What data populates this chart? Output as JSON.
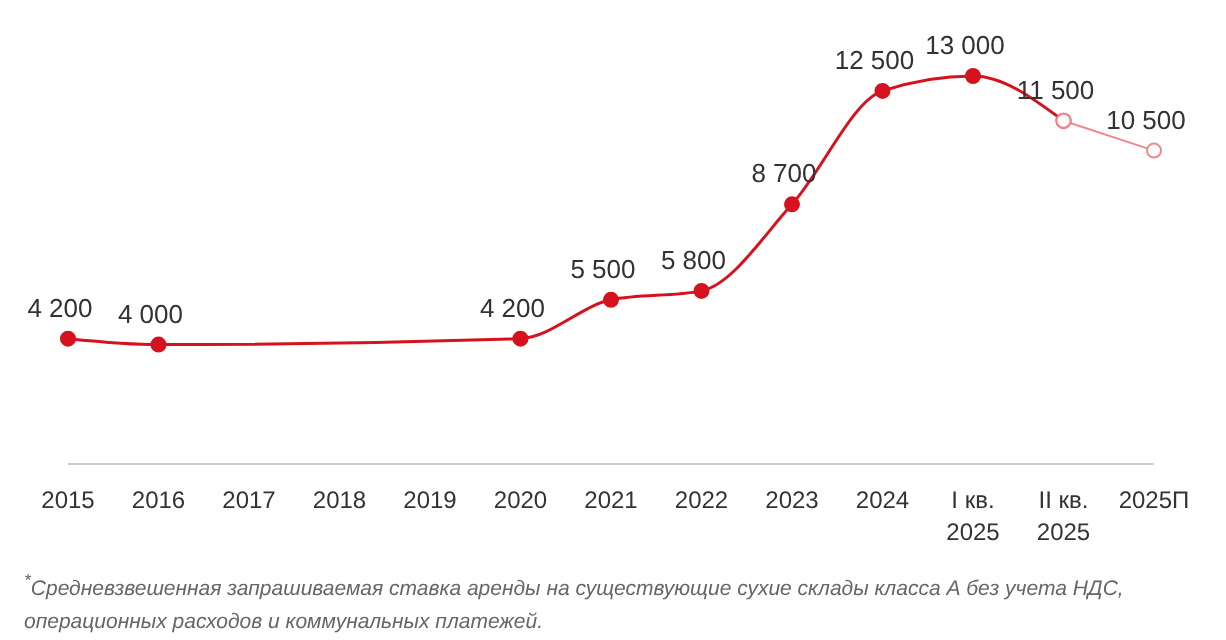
{
  "chart_data": {
    "type": "line",
    "categories": [
      "2015",
      "2016",
      "2017",
      "2018",
      "2019",
      "2020",
      "2021",
      "2022",
      "2023",
      "2024",
      "I кв. 2025",
      "II кв. 2025",
      "2025П"
    ],
    "series": [
      {
        "color": "#d5121d",
        "values": [
          4200,
          4000,
          null,
          null,
          null,
          4200,
          5500,
          5800,
          8700,
          12500,
          13000,
          11500,
          null
        ],
        "value_labels": [
          "4 200",
          "4 000",
          null,
          null,
          null,
          "4 200",
          "5 500",
          "5 800",
          "8 700",
          "12 500",
          "13 000",
          "11 500",
          null
        ]
      },
      {
        "color": "#ee8a8f",
        "values": [
          null,
          null,
          null,
          null,
          null,
          null,
          null,
          null,
          null,
          null,
          null,
          11500,
          10500
        ],
        "value_labels": [
          null,
          null,
          null,
          null,
          null,
          null,
          null,
          null,
          null,
          null,
          null,
          null,
          "10 500"
        ]
      }
    ],
    "marker": "circle",
    "annotations": [
      "$^{*}$Средневзвешенная запрашиваемая ставка аренды на существующие сухие склады класса А без учета НДС, операционных расходов и коммунальных платежей."
    ]
  }
}
